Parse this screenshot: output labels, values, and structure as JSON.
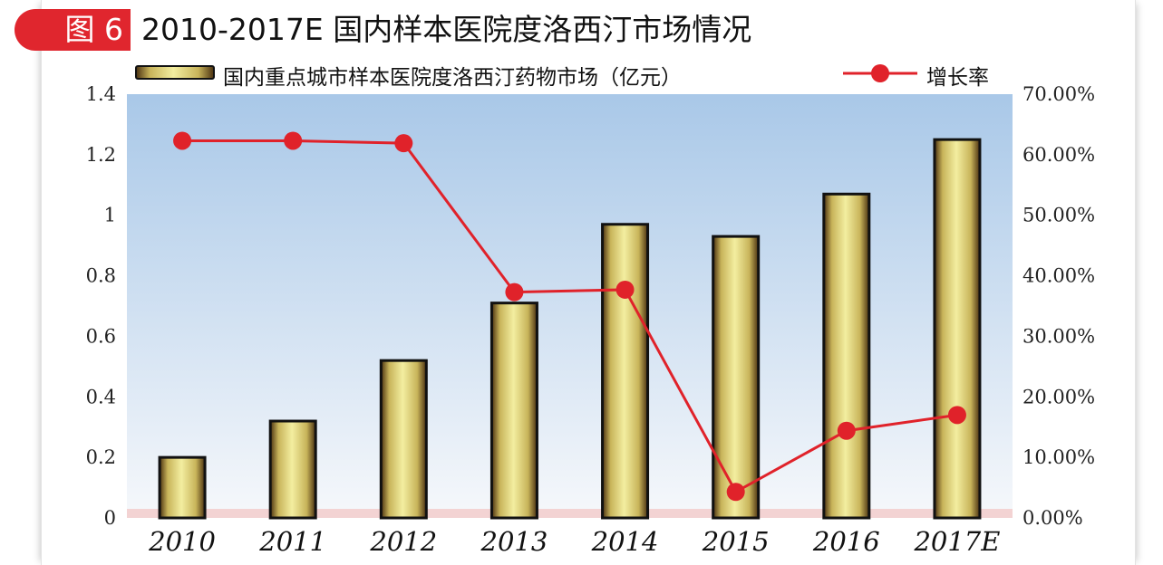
{
  "header": {
    "badge": "图 6",
    "title": "2010-2017E 国内样本医院度洛西汀市场情况"
  },
  "colors": {
    "accent": "#e0262e",
    "line": "#e0222a",
    "bar_light": "#f3eea0",
    "bar_mid": "#c8b45a",
    "bar_dark": "#4a3010",
    "plot_top": "#a9c8e8",
    "plot_bottom": "#f6f8fb"
  },
  "chart_data": {
    "type": "bar",
    "categories": [
      "2010",
      "2011",
      "2012",
      "2013",
      "2014",
      "2015",
      "2016",
      "2017E"
    ],
    "series": [
      {
        "name": "国内重点城市样本医院度洛西汀药物市场（亿元）",
        "type": "bar",
        "axis": "left",
        "values": [
          0.2,
          0.32,
          0.52,
          0.71,
          0.97,
          0.93,
          1.07,
          1.25
        ]
      },
      {
        "name": "增长率",
        "type": "line",
        "axis": "right",
        "values": [
          62.3,
          62.3,
          61.9,
          37.3,
          37.7,
          4.3,
          14.4,
          17.0
        ]
      }
    ],
    "y_left": {
      "ylim": [
        0,
        1.4
      ],
      "ticks": [
        0,
        0.2,
        0.4,
        0.6,
        0.8,
        1,
        1.2,
        1.4
      ],
      "tick_labels": [
        "0",
        "0.2",
        "0.4",
        "0.6",
        "0.8",
        "1",
        "1.2",
        "1.4"
      ]
    },
    "y_right": {
      "ylim": [
        0,
        70
      ],
      "ticks": [
        0,
        10,
        20,
        30,
        40,
        50,
        60,
        70
      ],
      "tick_labels": [
        "0.00%",
        "10.00%",
        "20.00%",
        "30.00%",
        "40.00%",
        "50.00%",
        "60.00%",
        "70.00%"
      ]
    },
    "legend_position": "top",
    "grid": false
  }
}
